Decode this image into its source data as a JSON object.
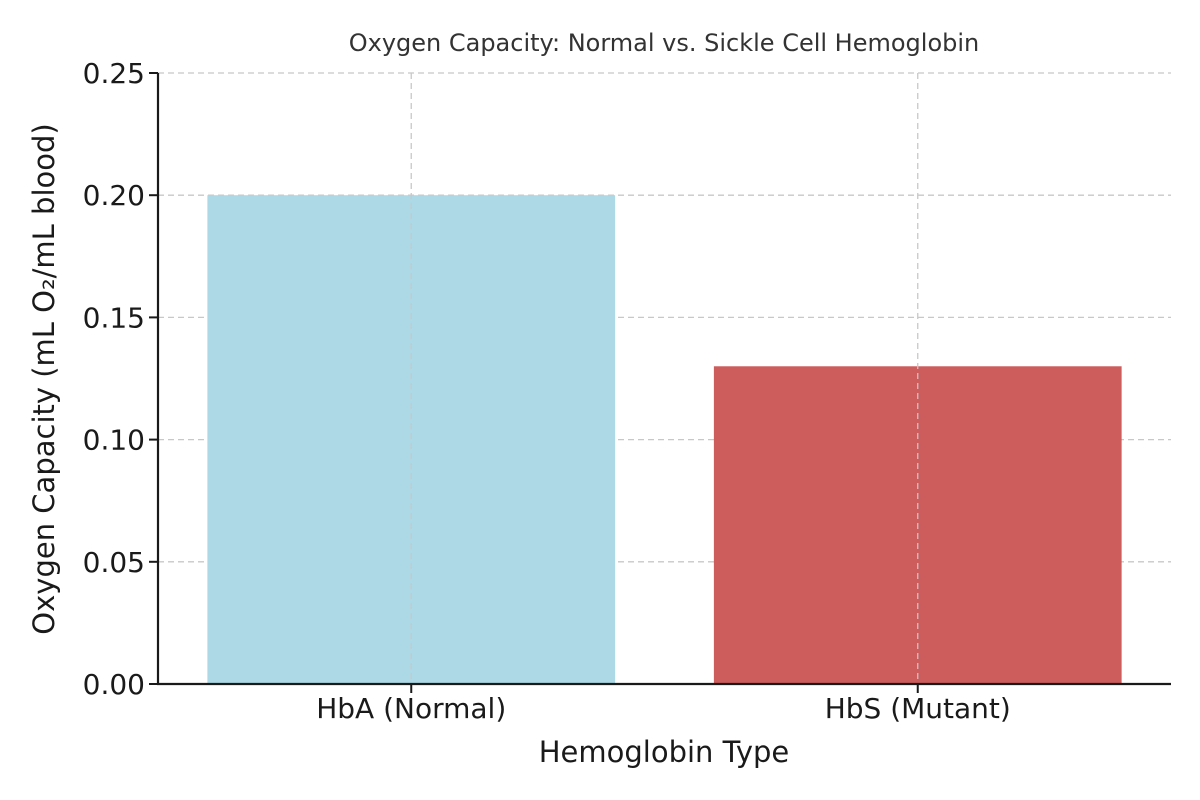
{
  "chart_data": {
    "type": "bar",
    "title": "Oxygen Capacity: Normal vs. Sickle Cell Hemoglobin",
    "xlabel": "Hemoglobin Type",
    "ylabel": "Oxygen Capacity (mL O₂/mL blood)",
    "categories": [
      "HbA (Normal)",
      "HbS (Mutant)"
    ],
    "values": [
      0.2,
      0.13
    ],
    "colors": [
      "#add8e6",
      "#cd5c5c"
    ],
    "ylim": [
      0,
      0.25
    ],
    "yticks": [
      0.0,
      0.05,
      0.1,
      0.15,
      0.2,
      0.25
    ],
    "ytick_labels": [
      "0.00",
      "0.05",
      "0.10",
      "0.15",
      "0.20",
      "0.25"
    ],
    "grid": true,
    "legend": "none"
  }
}
